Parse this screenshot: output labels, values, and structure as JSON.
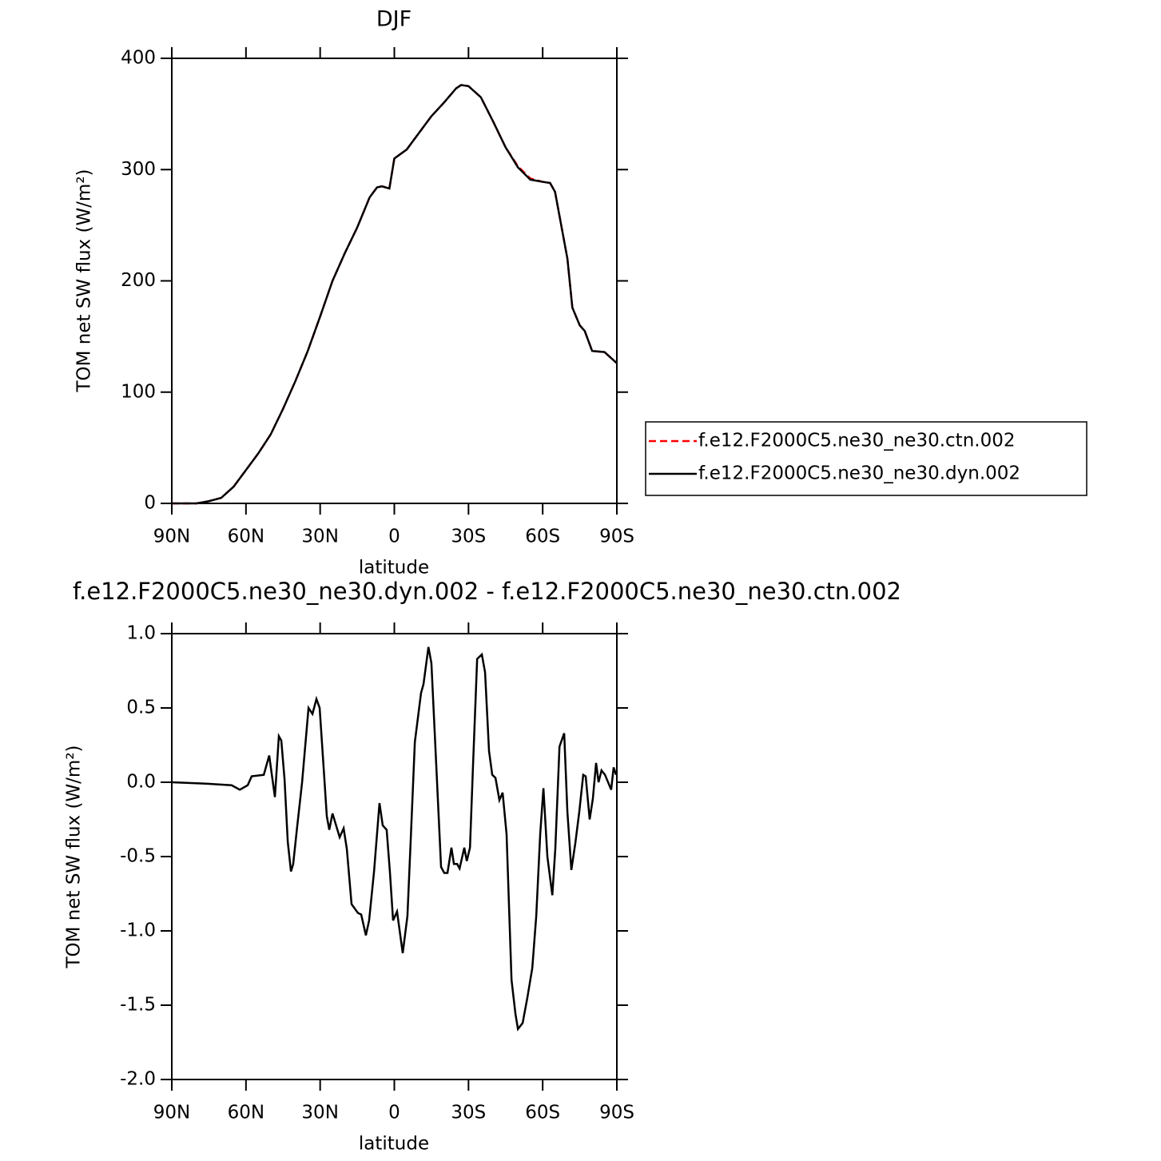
{
  "chart_data": [
    {
      "type": "line",
      "title": "DJF",
      "x_label": "latitude",
      "y_label": "TOM net SW flux (W/m²)",
      "xlim": [
        90,
        -90
      ],
      "xticks": [
        {
          "value": 90,
          "label": "90N"
        },
        {
          "value": 60,
          "label": "60N"
        },
        {
          "value": 30,
          "label": "30N"
        },
        0,
        {
          "value": -30,
          "label": "30S"
        },
        {
          "value": -60,
          "label": "60S"
        },
        {
          "value": -90,
          "label": "90S"
        }
      ],
      "ylim": [
        0,
        400
      ],
      "yticks": [
        0,
        100,
        200,
        300,
        400
      ],
      "x": [
        90,
        85,
        80,
        75,
        70,
        65,
        60,
        55,
        50,
        45,
        40,
        35,
        30,
        25,
        20,
        15,
        10,
        7,
        5,
        2,
        0,
        -5,
        -10,
        -15,
        -20,
        -25,
        -27,
        -30,
        -35,
        -40,
        -45,
        -50,
        -55,
        -60,
        -63,
        -65,
        -70,
        -72,
        -75,
        -77,
        -80,
        -85,
        -90
      ],
      "series": [
        {
          "name": "f.e12.F2000C5.ne30_ne30.ctn.002",
          "color": "#ff0000",
          "line_style": "dashed",
          "values": [
            0,
            0,
            0,
            2,
            5,
            15,
            30,
            45,
            62,
            85,
            110,
            137,
            168,
            200,
            225,
            248,
            275,
            284,
            285,
            283,
            310,
            318,
            333,
            348,
            360,
            373,
            376,
            375,
            365,
            343,
            320,
            303,
            292,
            289,
            288,
            280,
            220,
            176,
            160,
            155,
            137,
            136,
            126
          ]
        },
        {
          "name": "f.e12.F2000C5.ne30_ne30.dyn.002",
          "color": "#000000",
          "line_style": "solid",
          "values": [
            0,
            0,
            0,
            2,
            5,
            15,
            30,
            45,
            62,
            85,
            110,
            137,
            168,
            200,
            225,
            248,
            275,
            284,
            285,
            283,
            310,
            318,
            333,
            348,
            360,
            373,
            376,
            375,
            365,
            343,
            320,
            302,
            291,
            289,
            288,
            280,
            220,
            176,
            160,
            155,
            137,
            136,
            126
          ]
        }
      ]
    },
    {
      "type": "line",
      "title": "f.e12.F2000C5.ne30_ne30.dyn.002 - f.e12.F2000C5.ne30_ne30.ctn.002",
      "x_label": "latitude",
      "y_label": "TOM net SW flux (W/m²)",
      "xlim": [
        90,
        -90
      ],
      "xticks": [
        {
          "value": 90,
          "label": "90N"
        },
        {
          "value": 60,
          "label": "60N"
        },
        {
          "value": 30,
          "label": "30N"
        },
        0,
        {
          "value": -30,
          "label": "30S"
        },
        {
          "value": -60,
          "label": "60S"
        },
        {
          "value": -90,
          "label": "90S"
        }
      ],
      "ylim": [
        -2,
        1
      ],
      "yticks": [
        {
          "value": -2,
          "label": "-2.0"
        },
        -1.5,
        {
          "value": -1,
          "label": "-1.0"
        },
        -0.5,
        {
          "value": 0,
          "label": "0.0"
        },
        0.5,
        {
          "value": 1,
          "label": "1.0"
        }
      ],
      "x": [
        90,
        75.5,
        65.8,
        62.5,
        59.3,
        57.7,
        52.8,
        50.6,
        48.3,
        46.7,
        45.7,
        44.4,
        43.1,
        41.8,
        40.9,
        39.3,
        37.3,
        34.7,
        33.1,
        31.5,
        30.2,
        28.6,
        27.3,
        26.3,
        25,
        22.1,
        20.5,
        19.2,
        17.3,
        14.7,
        13.4,
        11.5,
        10.2,
        8.2,
        6,
        4.7,
        3.1,
        1.8,
        0.5,
        -1.1,
        -3.4,
        -5.3,
        -6.6,
        -8.3,
        -10.8,
        -11.8,
        -13.8,
        -15,
        -17,
        -18.9,
        -20.2,
        -21.5,
        -23.1,
        -24.1,
        -25.4,
        -26.4,
        -28.3,
        -29.3,
        -30.6,
        -31.8,
        -33.5,
        -35.4,
        -36.7,
        -38.3,
        -39.6,
        -40.9,
        -42.5,
        -43.8,
        -45.4,
        -47.4,
        -49,
        -50,
        -51.9,
        -53.8,
        -55.8,
        -57.4,
        -59,
        -60.3,
        -61.9,
        -63.9,
        -65.1,
        -66.8,
        -68.7,
        -70,
        -71.6,
        -73.2,
        -74.8,
        -76.4,
        -77.4,
        -79,
        -80.3,
        -81.6,
        -82.6,
        -83.8,
        -85.2,
        -87.7,
        -88.7,
        -89.7
      ],
      "series": [
        {
          "color": "#000000",
          "line_style": "solid",
          "values": [
            0,
            -0.01,
            -0.02,
            -0.05,
            -0.02,
            0.04,
            0.05,
            0.18,
            -0.1,
            0.31,
            0.28,
            0.02,
            -0.4,
            -0.6,
            -0.55,
            -0.3,
            0,
            0.5,
            0.46,
            0.56,
            0.5,
            0.1,
            -0.23,
            -0.32,
            -0.21,
            -0.37,
            -0.31,
            -0.45,
            -0.82,
            -0.88,
            -0.89,
            -1.03,
            -0.93,
            -0.6,
            -0.14,
            -0.29,
            -0.32,
            -0.6,
            -0.93,
            -0.87,
            -1.15,
            -0.9,
            -0.4,
            0.27,
            0.6,
            0.66,
            0.91,
            0.8,
            0.1,
            -0.57,
            -0.61,
            -0.61,
            -0.44,
            -0.55,
            -0.55,
            -0.58,
            -0.44,
            -0.53,
            -0.44,
            0.1,
            0.83,
            0.86,
            0.74,
            0.21,
            0.05,
            0.03,
            -0.12,
            -0.07,
            -0.35,
            -1.33,
            -1.56,
            -1.66,
            -1.62,
            -1.45,
            -1.25,
            -0.9,
            -0.35,
            -0.04,
            -0.5,
            -0.76,
            -0.45,
            0.24,
            0.33,
            -0.2,
            -0.59,
            -0.41,
            -0.2,
            0.05,
            0.04,
            -0.25,
            -0.11,
            0.13,
            0,
            0.08,
            0.05,
            -0.05,
            0.1,
            0.05
          ]
        }
      ]
    }
  ]
}
